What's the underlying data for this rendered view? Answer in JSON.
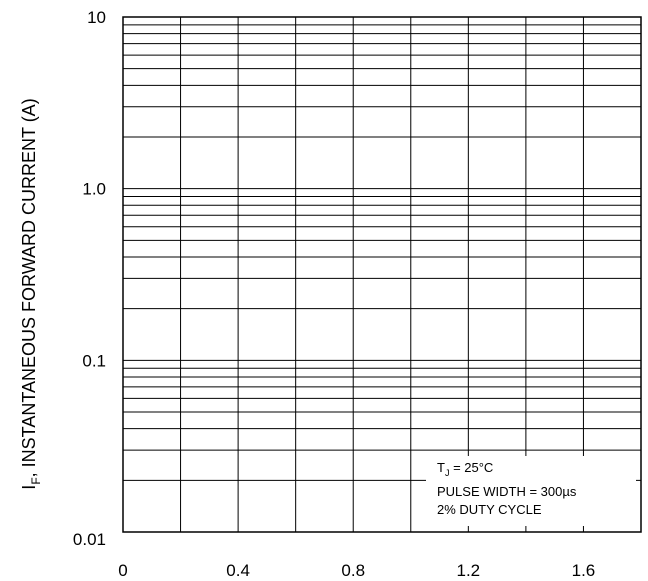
{
  "chart_data": {
    "type": "line",
    "title": "",
    "xlabel": "",
    "ylabel_prefix": "I",
    "ylabel_sub": "F",
    "ylabel_rest": ", INSTANTANEOUS FORWARD CURRENT (A)",
    "xlim": [
      0,
      1.8
    ],
    "ylim": [
      0.01,
      10
    ],
    "yscale": "log",
    "x_ticks": [
      {
        "value": 0,
        "label": "0"
      },
      {
        "value": 0.4,
        "label": "0.4"
      },
      {
        "value": 0.8,
        "label": "0.8"
      },
      {
        "value": 1.2,
        "label": "1.2"
      },
      {
        "value": 1.6,
        "label": "1.6"
      }
    ],
    "y_ticks": [
      {
        "value": 10,
        "label": "10"
      },
      {
        "value": 1.0,
        "label": "1.0"
      },
      {
        "value": 0.1,
        "label": "0.1"
      },
      {
        "value": 0.01,
        "label": "0.01"
      }
    ],
    "x_grid_step": 0.2,
    "grid": true,
    "series": [],
    "annotation": {
      "line1_prefix": "T",
      "line1_sub": "J",
      "line1_rest": " = 25°C",
      "line2": "PULSE WIDTH = 300µs",
      "line3": "2% DUTY CYCLE"
    }
  }
}
